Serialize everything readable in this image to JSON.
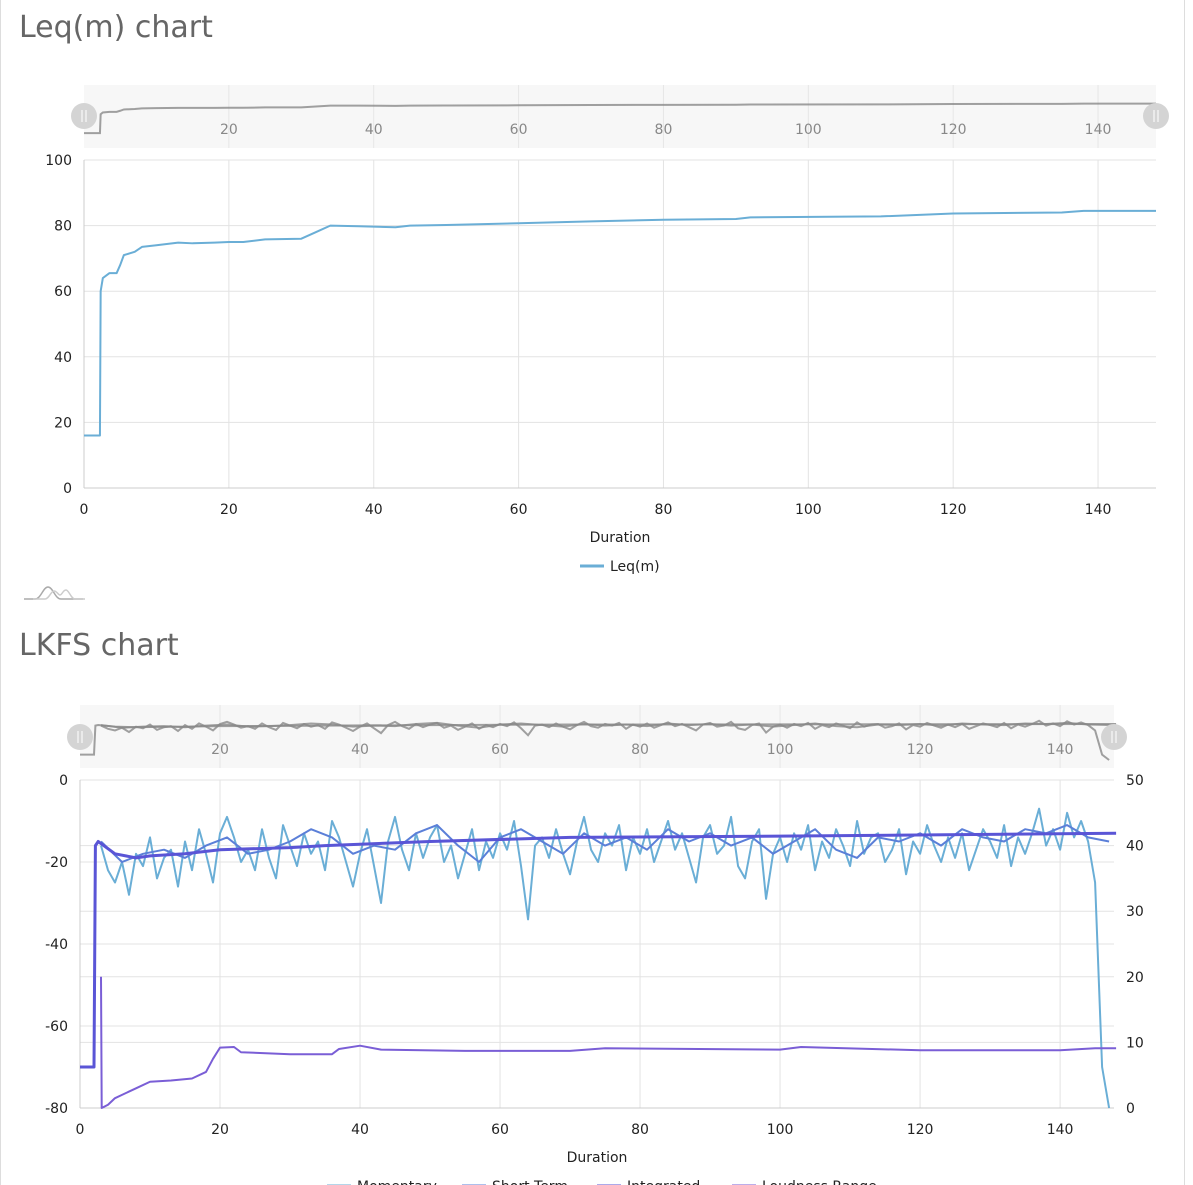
{
  "chart_data": [
    {
      "title": "Leq(m) chart",
      "type": "line",
      "xlabel": "Duration",
      "ylabel": "",
      "xlim": [
        0,
        148
      ],
      "ylim": [
        0,
        100
      ],
      "xticks": [
        0,
        20,
        40,
        60,
        80,
        100,
        120,
        140
      ],
      "yticks": [
        0,
        20,
        40,
        60,
        80,
        100
      ],
      "navigator_ticks": [
        20,
        40,
        60,
        80,
        100,
        120,
        140
      ],
      "grid": true,
      "legend": "bottom",
      "series": [
        {
          "name": "Leq(m)",
          "color": "#6aaed6",
          "axis": "left",
          "points": [
            [
              0,
              16
            ],
            [
              2.2,
              16
            ],
            [
              2.3,
              60
            ],
            [
              2.6,
              64
            ],
            [
              3.5,
              65.5
            ],
            [
              4.5,
              65.5
            ],
            [
              5,
              68
            ],
            [
              5.5,
              71
            ],
            [
              7,
              72
            ],
            [
              8,
              73.5
            ],
            [
              10,
              74
            ],
            [
              13,
              74.8
            ],
            [
              15,
              74.6
            ],
            [
              18,
              74.8
            ],
            [
              20,
              75
            ],
            [
              22,
              75
            ],
            [
              25,
              75.8
            ],
            [
              30,
              76
            ],
            [
              32,
              78
            ],
            [
              34,
              80
            ],
            [
              38,
              79.8
            ],
            [
              43,
              79.5
            ],
            [
              45,
              80
            ],
            [
              50,
              80.2
            ],
            [
              60,
              80.7
            ],
            [
              70,
              81.3
            ],
            [
              80,
              81.8
            ],
            [
              90,
              82
            ],
            [
              92,
              82.5
            ],
            [
              110,
              82.8
            ],
            [
              120,
              83.7
            ],
            [
              135,
              84
            ],
            [
              138,
              84.5
            ],
            [
              148,
              84.5
            ]
          ]
        }
      ]
    },
    {
      "title": "LKFS chart",
      "type": "line",
      "xlabel": "Duration",
      "ylabel": "",
      "xlim": [
        0,
        147.7
      ],
      "ylim": [
        -80,
        0
      ],
      "y2lim": [
        0,
        50
      ],
      "xticks": [
        0,
        20,
        40,
        60,
        80,
        100,
        120,
        140
      ],
      "yticks": [
        0,
        -20,
        -40,
        -60,
        -80
      ],
      "y2ticks": [
        0,
        10,
        20,
        30,
        40,
        50
      ],
      "navigator_ticks": [
        20,
        40,
        60,
        80,
        100,
        120,
        140
      ],
      "grid": true,
      "legend": "bottom",
      "series": [
        {
          "name": "Momentary",
          "color": "#6aaed6",
          "axis": "left",
          "x_start": 3,
          "step": 1,
          "values": [
            -16,
            -22,
            -25,
            -20,
            -28,
            -18,
            -21,
            -14,
            -24,
            -19,
            -17,
            -26,
            -15,
            -22,
            -12,
            -18,
            -25,
            -13,
            -9,
            -14,
            -20,
            -17,
            -22,
            -12,
            -19,
            -24,
            -11,
            -16,
            -21,
            -13,
            -18,
            -15,
            -22,
            -10,
            -14,
            -20,
            -26,
            -18,
            -12,
            -21,
            -30,
            -15,
            -9,
            -17,
            -22,
            -13,
            -19,
            -14,
            -11,
            -20,
            -16,
            -24,
            -18,
            -12,
            -22,
            -15,
            -19,
            -13,
            -17,
            -10,
            -21,
            -34,
            -16,
            -14,
            -19,
            -12,
            -18,
            -23,
            -15,
            -9,
            -17,
            -20,
            -13,
            -16,
            -11,
            -22,
            -14,
            -18,
            -12,
            -20,
            -15,
            -10,
            -17,
            -13,
            -19,
            -25,
            -14,
            -11,
            -18,
            -16,
            -9,
            -21,
            -24,
            -15,
            -12,
            -29,
            -18,
            -14,
            -20,
            -13,
            -17,
            -11,
            -22,
            -15,
            -19,
            -12,
            -16,
            -21,
            -10,
            -18,
            -14,
            -13,
            -20,
            -17,
            -12,
            -23,
            -15,
            -18,
            -11,
            -16,
            -20,
            -14,
            -19,
            -13,
            -22,
            -17,
            -12,
            -15,
            -19,
            -11,
            -21,
            -14,
            -18,
            -13,
            -7,
            -16,
            -12,
            -17,
            -8,
            -14,
            -10,
            -15,
            -25,
            -70,
            -80
          ]
        },
        {
          "name": "Short Term",
          "color": "#5b7fd8",
          "axis": "left",
          "x_start": 3,
          "step": 3,
          "values": [
            -15,
            -20,
            -18,
            -17,
            -19,
            -16,
            -14,
            -18,
            -17,
            -15,
            -12,
            -14,
            -18,
            -16,
            -17,
            -13,
            -11,
            -16,
            -20,
            -14,
            -12,
            -15,
            -18,
            -13,
            -16,
            -14,
            -17,
            -12,
            -15,
            -13,
            -16,
            -14,
            -18,
            -15,
            -12,
            -17,
            -19,
            -14,
            -15,
            -13,
            -16,
            -12,
            -14,
            -15,
            -12,
            -13,
            -11,
            -14,
            -15
          ]
        },
        {
          "name": "Integrated",
          "color": "#5a55d6",
          "axis": "left",
          "points": [
            [
              0,
              -70
            ],
            [
              2,
              -70
            ],
            [
              2.2,
              -16
            ],
            [
              2.6,
              -15
            ],
            [
              5,
              -18
            ],
            [
              8,
              -19
            ],
            [
              10,
              -18.5
            ],
            [
              15,
              -18
            ],
            [
              20,
              -17
            ],
            [
              30,
              -16.5
            ],
            [
              35,
              -16
            ],
            [
              50,
              -15
            ],
            [
              70,
              -14
            ],
            [
              100,
              -13.7
            ],
            [
              148,
              -13
            ]
          ]
        },
        {
          "name": "Loudness Range",
          "color": "#7a5ed6",
          "axis": "right",
          "points": [
            [
              3,
              20
            ],
            [
              3.1,
              0
            ],
            [
              4,
              0.5
            ],
            [
              5,
              1.5
            ],
            [
              6,
              2
            ],
            [
              8,
              3
            ],
            [
              10,
              4
            ],
            [
              13,
              4.2
            ],
            [
              16,
              4.5
            ],
            [
              18,
              5.5
            ],
            [
              19,
              7.5
            ],
            [
              20,
              9.2
            ],
            [
              22,
              9.3
            ],
            [
              23,
              8.5
            ],
            [
              30,
              8.2
            ],
            [
              36,
              8.2
            ],
            [
              37,
              9
            ],
            [
              40,
              9.5
            ],
            [
              43,
              8.9
            ],
            [
              55,
              8.7
            ],
            [
              70,
              8.7
            ],
            [
              75,
              9.1
            ],
            [
              100,
              8.9
            ],
            [
              103,
              9.3
            ],
            [
              120,
              8.8
            ],
            [
              140,
              8.8
            ],
            [
              145,
              9.1
            ],
            [
              148,
              9.1
            ]
          ]
        }
      ]
    }
  ]
}
